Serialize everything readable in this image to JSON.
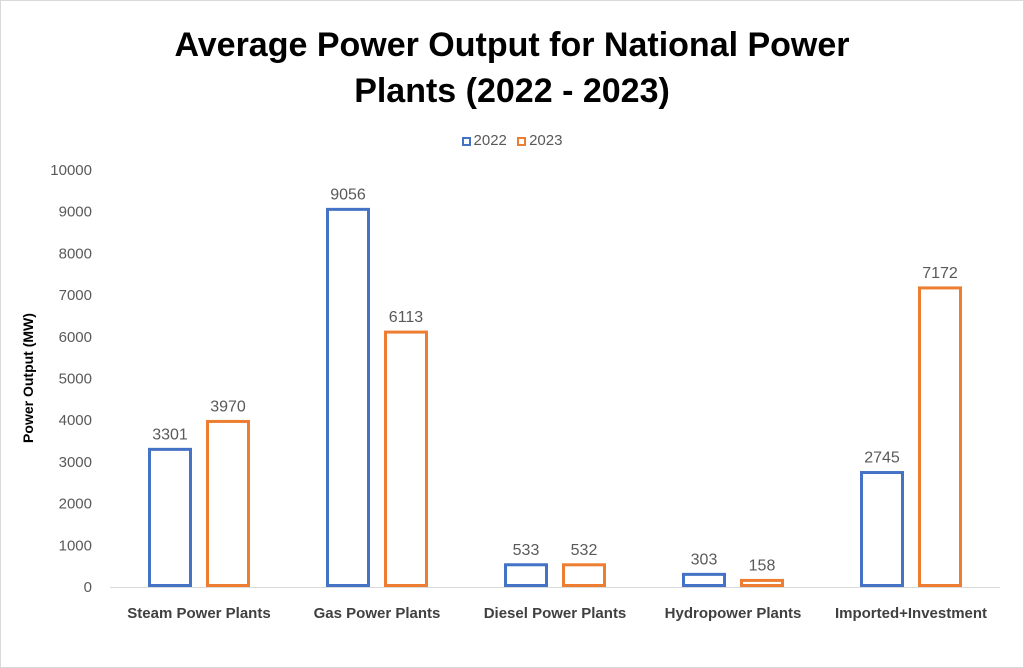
{
  "chart_data": {
    "type": "bar",
    "title_lines": [
      "Average Power Output for National Power",
      "Plants (2022 - 2023)"
    ],
    "xlabel": "",
    "ylabel": "Power Output (MW)",
    "categories": [
      "Steam Power Plants",
      "Gas Power Plants",
      "Diesel Power Plants",
      "Hydropower Plants",
      "Imported+Investment"
    ],
    "series": [
      {
        "name": "2022",
        "values": [
          3301,
          9056,
          533,
          303,
          2745
        ],
        "color": "#4472c4"
      },
      {
        "name": "2023",
        "values": [
          3970,
          6113,
          532,
          158,
          7172
        ],
        "color": "#ed7d31"
      }
    ],
    "ylim": [
      0,
      10000
    ],
    "yticks": [
      0,
      1000,
      2000,
      3000,
      4000,
      5000,
      6000,
      7000,
      8000,
      9000,
      10000
    ],
    "grid": false,
    "legend_position": "top",
    "bar_style": "outline"
  }
}
